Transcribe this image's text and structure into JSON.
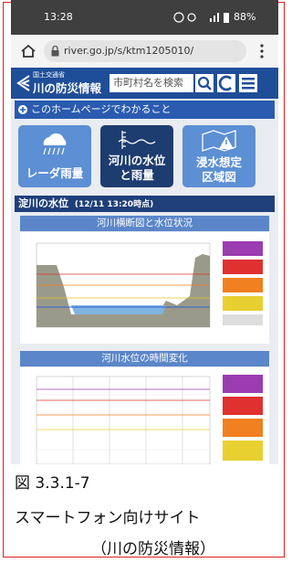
{
  "status_bar": {
    "time": "13:28",
    "battery": "88%"
  },
  "address_bar": {
    "url": "river.go.jp/s/ktm1205010/"
  },
  "site_header": {
    "ministry": "国土交通省",
    "site_name": "川の防災情報",
    "search_placeholder": "市町村名を検索"
  },
  "intro_bar": "このホームページでわかること",
  "tiles": [
    {
      "lines": [
        "レーダ雨量"
      ]
    },
    {
      "lines": [
        "河川の水位",
        "と雨量"
      ]
    },
    {
      "lines": [
        "浸水想定",
        "区域図"
      ]
    }
  ],
  "section": {
    "title": "淀川の水位",
    "timestamp": "(12/11 13:20時点)"
  },
  "panels": [
    {
      "title": "河川横断図と水位状況"
    },
    {
      "title": "河川水位の時間変化"
    }
  ],
  "caption": {
    "figure": "図 3.3.1-7",
    "lines": [
      "スマートフォン向けサイト",
      "（川の防災情報）"
    ]
  }
}
